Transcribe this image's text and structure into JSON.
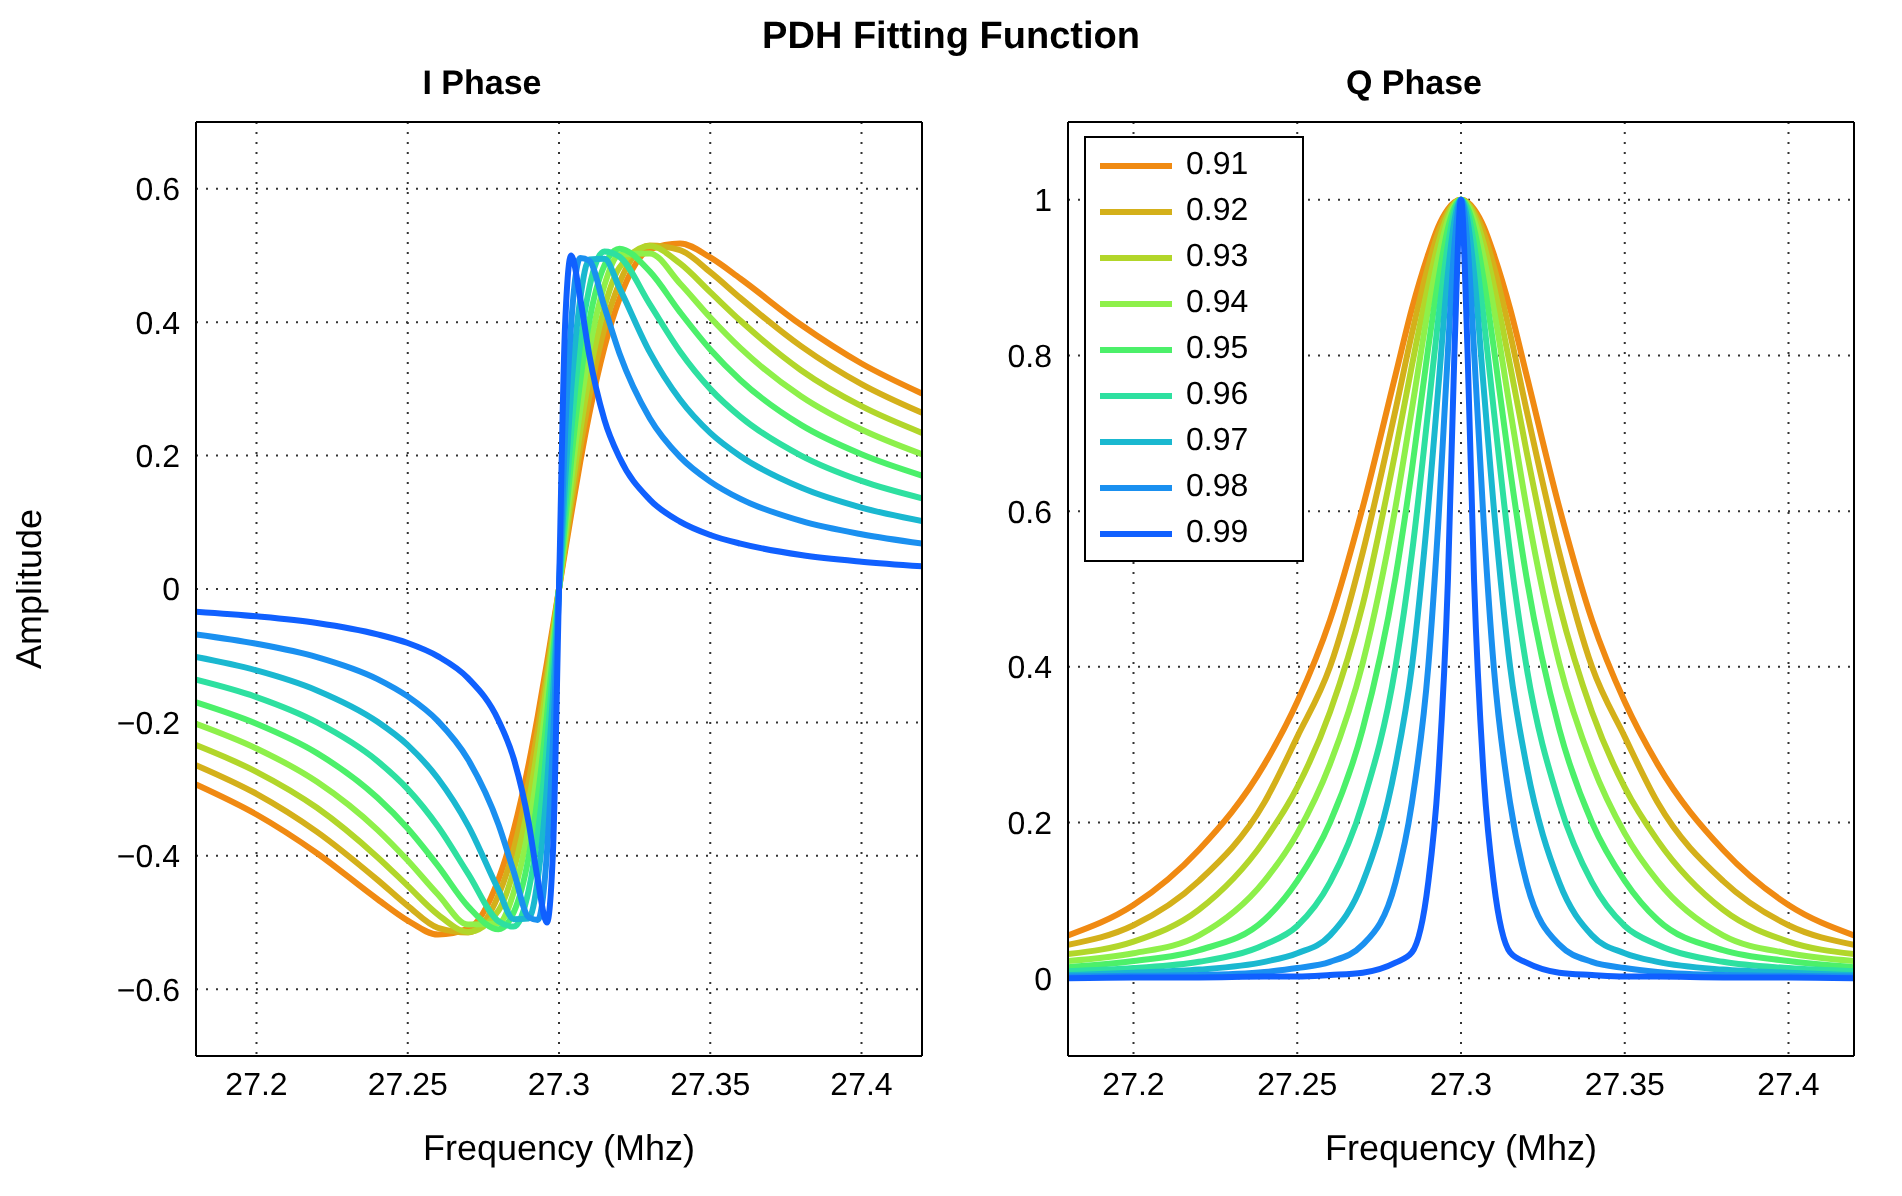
{
  "chart_data": [
    {
      "type": "line",
      "title": "I Phase",
      "xlabel": "Frequency (Mhz)",
      "ylabel": "Amplitude",
      "annotations": [
        "PDH Fitting Function"
      ],
      "xlim": [
        27.18,
        27.42
      ],
      "xticks": [
        27.2,
        27.25,
        27.3,
        27.35,
        27.4
      ],
      "ylim": [
        -0.7,
        0.7
      ],
      "yticks": [
        {
          "value": -0.6,
          "label": "−0.6"
        },
        {
          "value": -0.4,
          "label": "−0.4"
        },
        {
          "value": -0.2,
          "label": "−0.2"
        },
        0,
        0.2,
        0.4,
        0.6
      ],
      "grid": true,
      "legend": false,
      "marker": "none",
      "line_style": "solid",
      "x": [
        27.18,
        27.2,
        27.22,
        27.24,
        27.25,
        27.26,
        27.27,
        27.28,
        27.285,
        27.29,
        27.293,
        27.296,
        27.298,
        27.3,
        27.302,
        27.304,
        27.307,
        27.31,
        27.315,
        27.32,
        27.33,
        27.34,
        27.35,
        27.36,
        27.38,
        27.4,
        27.42
      ],
      "series": [
        {
          "color": "#f08a12",
          "values": [
            -0.293,
            -0.338,
            -0.396,
            -0.465,
            -0.497,
            -0.518,
            -0.509,
            -0.435,
            -0.362,
            -0.262,
            -0.19,
            -0.111,
            -0.056,
            0,
            0.056,
            0.111,
            0.19,
            0.262,
            0.362,
            0.435,
            0.509,
            0.518,
            0.497,
            0.465,
            0.396,
            0.338,
            0.293
          ]
        },
        {
          "color": "#d4b01a",
          "values": [
            -0.264,
            -0.307,
            -0.364,
            -0.436,
            -0.475,
            -0.508,
            -0.515,
            -0.459,
            -0.391,
            -0.288,
            -0.211,
            -0.124,
            -0.063,
            0,
            0.063,
            0.124,
            0.211,
            0.288,
            0.391,
            0.459,
            0.515,
            0.508,
            0.475,
            0.436,
            0.364,
            0.307,
            0.264
          ]
        },
        {
          "color": "#b2d62a",
          "values": [
            -0.234,
            -0.274,
            -0.328,
            -0.402,
            -0.445,
            -0.488,
            -0.514,
            -0.482,
            -0.422,
            -0.319,
            -0.236,
            -0.14,
            -0.071,
            0,
            0.071,
            0.14,
            0.236,
            0.319,
            0.422,
            0.482,
            0.514,
            0.488,
            0.445,
            0.402,
            0.328,
            0.274,
            0.234
          ]
        },
        {
          "color": "#8ef04a",
          "values": [
            -0.202,
            -0.239,
            -0.289,
            -0.361,
            -0.407,
            -0.458,
            -0.503,
            -0.501,
            -0.455,
            -0.357,
            -0.269,
            -0.162,
            -0.083,
            0,
            0.083,
            0.162,
            0.269,
            0.357,
            0.455,
            0.501,
            0.503,
            0.458,
            0.407,
            0.361,
            0.289,
            0.239,
            0.202
          ]
        },
        {
          "color": "#4cf06a",
          "values": [
            -0.17,
            -0.202,
            -0.246,
            -0.313,
            -0.359,
            -0.415,
            -0.476,
            -0.51,
            -0.485,
            -0.401,
            -0.311,
            -0.191,
            -0.098,
            0,
            0.098,
            0.191,
            0.311,
            0.401,
            0.485,
            0.51,
            0.476,
            0.415,
            0.359,
            0.313,
            0.246,
            0.202,
            0.17
          ]
        },
        {
          "color": "#2ee0a0",
          "values": [
            -0.136,
            -0.162,
            -0.2,
            -0.258,
            -0.3,
            -0.356,
            -0.427,
            -0.498,
            -0.506,
            -0.451,
            -0.367,
            -0.234,
            -0.122,
            0,
            0.122,
            0.234,
            0.367,
            0.451,
            0.506,
            0.498,
            0.427,
            0.356,
            0.3,
            0.258,
            0.2,
            0.162,
            0.136
          ]
        },
        {
          "color": "#1ab8d0",
          "values": [
            -0.102,
            -0.122,
            -0.152,
            -0.199,
            -0.234,
            -0.284,
            -0.355,
            -0.451,
            -0.495,
            -0.494,
            -0.434,
            -0.297,
            -0.16,
            0,
            0.16,
            0.297,
            0.434,
            0.494,
            0.495,
            0.451,
            0.355,
            0.284,
            0.234,
            0.199,
            0.152,
            0.122,
            0.102
          ]
        },
        {
          "color": "#1a90f0",
          "values": [
            -0.068,
            -0.082,
            -0.102,
            -0.135,
            -0.161,
            -0.198,
            -0.256,
            -0.353,
            -0.423,
            -0.492,
            -0.496,
            -0.396,
            -0.231,
            0,
            0.231,
            0.396,
            0.496,
            0.492,
            0.423,
            0.353,
            0.256,
            0.198,
            0.161,
            0.135,
            0.102,
            0.082,
            0.068
          ]
        },
        {
          "color": "#1060ff",
          "values": [
            -0.034,
            -0.041,
            -0.051,
            -0.068,
            -0.081,
            -0.101,
            -0.134,
            -0.197,
            -0.254,
            -0.351,
            -0.436,
            -0.5,
            -0.394,
            0,
            0.394,
            0.5,
            0.436,
            0.351,
            0.254,
            0.197,
            0.134,
            0.101,
            0.081,
            0.068,
            0.051,
            0.041,
            0.034
          ]
        }
      ]
    },
    {
      "type": "line",
      "title": "Q Phase",
      "xlabel": "Frequency (Mhz)",
      "xlim": [
        27.18,
        27.42
      ],
      "xticks": [
        27.2,
        27.25,
        27.3,
        27.35,
        27.4
      ],
      "ylim": [
        -0.1,
        1.1
      ],
      "yticks": [
        0,
        0.2,
        0.4,
        0.6,
        0.8,
        1
      ],
      "grid": true,
      "legend": "top left",
      "marker": "none",
      "line_style": "solid",
      "x": [
        27.18,
        27.2,
        27.22,
        27.24,
        27.25,
        27.26,
        27.27,
        27.28,
        27.285,
        27.29,
        27.293,
        27.296,
        27.298,
        27.3,
        27.302,
        27.304,
        27.307,
        27.31,
        27.315,
        27.32,
        27.33,
        27.34,
        27.35,
        27.36,
        27.38,
        27.4,
        27.42
      ],
      "series": [
        {
          "name": "0.91",
          "color": "#f08a12",
          "values": [
            0.055,
            0.094,
            0.165,
            0.275,
            0.355,
            0.46,
            0.605,
            0.775,
            0.86,
            0.93,
            0.965,
            0.988,
            0.997,
            1,
            0.997,
            0.988,
            0.965,
            0.93,
            0.86,
            0.775,
            0.605,
            0.46,
            0.355,
            0.275,
            0.165,
            0.094,
            0.055
          ]
        },
        {
          "name": "0.92",
          "color": "#d4b01a",
          "values": [
            0.043,
            0.068,
            0.125,
            0.226,
            0.31,
            0.4,
            0.547,
            0.73,
            0.828,
            0.915,
            0.957,
            0.985,
            0.996,
            1,
            0.996,
            0.985,
            0.957,
            0.915,
            0.828,
            0.73,
            0.547,
            0.4,
            0.31,
            0.226,
            0.125,
            0.068,
            0.043
          ]
        },
        {
          "name": "0.93",
          "color": "#b2d62a",
          "values": [
            0.031,
            0.047,
            0.088,
            0.177,
            0.245,
            0.342,
            0.48,
            0.677,
            0.787,
            0.89,
            0.943,
            0.981,
            0.995,
            1,
            0.995,
            0.981,
            0.943,
            0.89,
            0.787,
            0.677,
            0.48,
            0.342,
            0.245,
            0.177,
            0.088,
            0.047,
            0.031
          ]
        },
        {
          "name": "0.94",
          "color": "#8ef04a",
          "values": [
            0.022,
            0.032,
            0.055,
            0.125,
            0.186,
            0.275,
            0.405,
            0.605,
            0.731,
            0.86,
            0.925,
            0.974,
            0.993,
            1,
            0.993,
            0.974,
            0.925,
            0.86,
            0.731,
            0.605,
            0.405,
            0.275,
            0.186,
            0.125,
            0.055,
            0.032,
            0.022
          ]
        },
        {
          "name": "0.95",
          "color": "#4cf06a",
          "values": [
            0.014,
            0.022,
            0.036,
            0.075,
            0.125,
            0.2,
            0.32,
            0.515,
            0.653,
            0.81,
            0.895,
            0.963,
            0.99,
            1,
            0.99,
            0.963,
            0.895,
            0.81,
            0.653,
            0.515,
            0.32,
            0.2,
            0.125,
            0.075,
            0.036,
            0.022,
            0.014
          ]
        },
        {
          "name": "0.96",
          "color": "#2ee0a0",
          "values": [
            0.009,
            0.013,
            0.021,
            0.043,
            0.067,
            0.123,
            0.225,
            0.4,
            0.545,
            0.73,
            0.845,
            0.942,
            0.985,
            1,
            0.985,
            0.942,
            0.845,
            0.73,
            0.545,
            0.4,
            0.225,
            0.123,
            0.067,
            0.043,
            0.021,
            0.013,
            0.009
          ]
        },
        {
          "name": "0.97",
          "color": "#1ab8d0",
          "values": [
            0.004,
            0.007,
            0.011,
            0.021,
            0.032,
            0.055,
            0.123,
            0.273,
            0.4,
            0.605,
            0.755,
            0.905,
            0.973,
            1,
            0.973,
            0.905,
            0.755,
            0.605,
            0.4,
            0.273,
            0.123,
            0.055,
            0.032,
            0.021,
            0.011,
            0.007,
            0.004
          ]
        },
        {
          "name": "0.98",
          "color": "#1a90f0",
          "values": [
            0.002,
            0.003,
            0.004,
            0.008,
            0.013,
            0.021,
            0.043,
            0.123,
            0.225,
            0.4,
            0.58,
            0.805,
            0.942,
            1,
            0.942,
            0.805,
            0.58,
            0.4,
            0.225,
            0.123,
            0.043,
            0.021,
            0.013,
            0.008,
            0.004,
            0.003,
            0.002
          ]
        },
        {
          "name": "0.99",
          "color": "#1060ff",
          "values": [
            0,
            0.001,
            0.001,
            0.002,
            0.002,
            0.004,
            0.007,
            0.02,
            0.033,
            0.123,
            0.255,
            0.51,
            0.805,
            1,
            0.805,
            0.51,
            0.255,
            0.123,
            0.033,
            0.02,
            0.007,
            0.004,
            0.002,
            0.002,
            0.001,
            0.001,
            0
          ]
        }
      ]
    }
  ]
}
